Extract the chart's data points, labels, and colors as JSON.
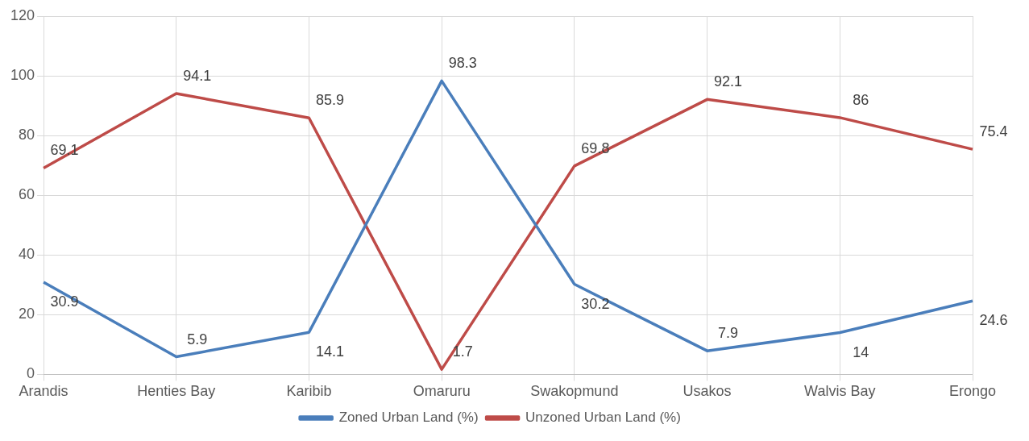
{
  "chart_data": {
    "type": "line",
    "categories": [
      "Arandis",
      "Henties Bay",
      "Karibib",
      "Omaruru",
      "Swakopmund",
      "Usakos",
      "Walvis Bay",
      "Erongo"
    ],
    "series": [
      {
        "name": "Zoned Urban Land (%)",
        "color": "#4a7ebb",
        "values": [
          30.9,
          5.9,
          14.1,
          98.3,
          30.2,
          7.9,
          14,
          24.6
        ]
      },
      {
        "name": "Unzoned Urban Land (%)",
        "color": "#be4b48",
        "values": [
          69.1,
          94.1,
          85.9,
          1.7,
          69.8,
          92.1,
          86,
          75.4
        ]
      }
    ],
    "ylim": [
      0,
      120
    ],
    "yticks": [
      0,
      20,
      40,
      60,
      80,
      100,
      120
    ],
    "grid": true,
    "legend": "bottom",
    "marker": "none",
    "line_style": "solid",
    "data_labels": true
  }
}
